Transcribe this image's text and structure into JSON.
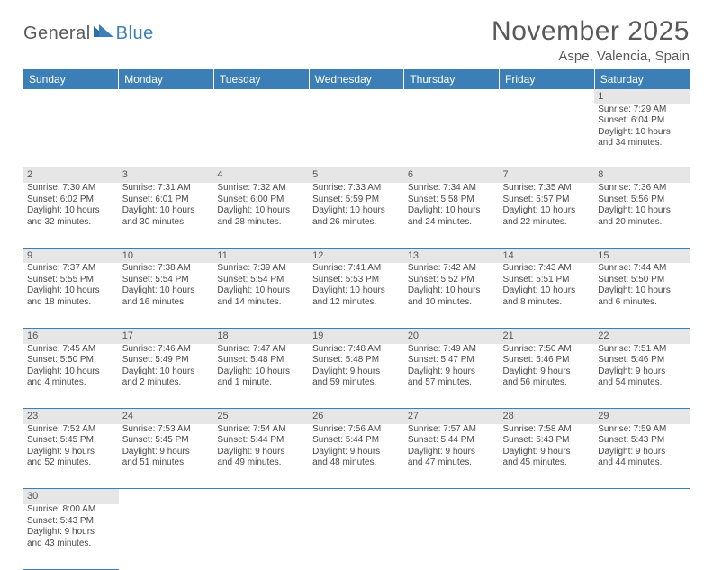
{
  "branding": {
    "logo_part1": "General",
    "logo_part2": "Blue",
    "logo_color_gray": "#5a5a5a",
    "logo_color_blue": "#3b7fb6"
  },
  "header": {
    "title": "November 2025",
    "location": "Aspe, Valencia, Spain"
  },
  "theme": {
    "header_bg": "#3b7fb6",
    "header_fg": "#ffffff",
    "daynum_bg": "#e6e6e6",
    "border_color": "#3b7fb6",
    "text_color": "#4a4a4a"
  },
  "weekdays": [
    "Sunday",
    "Monday",
    "Tuesday",
    "Wednesday",
    "Thursday",
    "Friday",
    "Saturday"
  ],
  "weeks": [
    [
      null,
      null,
      null,
      null,
      null,
      null,
      {
        "n": "1",
        "sr": "Sunrise: 7:29 AM",
        "ss": "Sunset: 6:04 PM",
        "d1": "Daylight: 10 hours",
        "d2": "and 34 minutes."
      }
    ],
    [
      {
        "n": "2",
        "sr": "Sunrise: 7:30 AM",
        "ss": "Sunset: 6:02 PM",
        "d1": "Daylight: 10 hours",
        "d2": "and 32 minutes."
      },
      {
        "n": "3",
        "sr": "Sunrise: 7:31 AM",
        "ss": "Sunset: 6:01 PM",
        "d1": "Daylight: 10 hours",
        "d2": "and 30 minutes."
      },
      {
        "n": "4",
        "sr": "Sunrise: 7:32 AM",
        "ss": "Sunset: 6:00 PM",
        "d1": "Daylight: 10 hours",
        "d2": "and 28 minutes."
      },
      {
        "n": "5",
        "sr": "Sunrise: 7:33 AM",
        "ss": "Sunset: 5:59 PM",
        "d1": "Daylight: 10 hours",
        "d2": "and 26 minutes."
      },
      {
        "n": "6",
        "sr": "Sunrise: 7:34 AM",
        "ss": "Sunset: 5:58 PM",
        "d1": "Daylight: 10 hours",
        "d2": "and 24 minutes."
      },
      {
        "n": "7",
        "sr": "Sunrise: 7:35 AM",
        "ss": "Sunset: 5:57 PM",
        "d1": "Daylight: 10 hours",
        "d2": "and 22 minutes."
      },
      {
        "n": "8",
        "sr": "Sunrise: 7:36 AM",
        "ss": "Sunset: 5:56 PM",
        "d1": "Daylight: 10 hours",
        "d2": "and 20 minutes."
      }
    ],
    [
      {
        "n": "9",
        "sr": "Sunrise: 7:37 AM",
        "ss": "Sunset: 5:55 PM",
        "d1": "Daylight: 10 hours",
        "d2": "and 18 minutes."
      },
      {
        "n": "10",
        "sr": "Sunrise: 7:38 AM",
        "ss": "Sunset: 5:54 PM",
        "d1": "Daylight: 10 hours",
        "d2": "and 16 minutes."
      },
      {
        "n": "11",
        "sr": "Sunrise: 7:39 AM",
        "ss": "Sunset: 5:54 PM",
        "d1": "Daylight: 10 hours",
        "d2": "and 14 minutes."
      },
      {
        "n": "12",
        "sr": "Sunrise: 7:41 AM",
        "ss": "Sunset: 5:53 PM",
        "d1": "Daylight: 10 hours",
        "d2": "and 12 minutes."
      },
      {
        "n": "13",
        "sr": "Sunrise: 7:42 AM",
        "ss": "Sunset: 5:52 PM",
        "d1": "Daylight: 10 hours",
        "d2": "and 10 minutes."
      },
      {
        "n": "14",
        "sr": "Sunrise: 7:43 AM",
        "ss": "Sunset: 5:51 PM",
        "d1": "Daylight: 10 hours",
        "d2": "and 8 minutes."
      },
      {
        "n": "15",
        "sr": "Sunrise: 7:44 AM",
        "ss": "Sunset: 5:50 PM",
        "d1": "Daylight: 10 hours",
        "d2": "and 6 minutes."
      }
    ],
    [
      {
        "n": "16",
        "sr": "Sunrise: 7:45 AM",
        "ss": "Sunset: 5:50 PM",
        "d1": "Daylight: 10 hours",
        "d2": "and 4 minutes."
      },
      {
        "n": "17",
        "sr": "Sunrise: 7:46 AM",
        "ss": "Sunset: 5:49 PM",
        "d1": "Daylight: 10 hours",
        "d2": "and 2 minutes."
      },
      {
        "n": "18",
        "sr": "Sunrise: 7:47 AM",
        "ss": "Sunset: 5:48 PM",
        "d1": "Daylight: 10 hours",
        "d2": "and 1 minute."
      },
      {
        "n": "19",
        "sr": "Sunrise: 7:48 AM",
        "ss": "Sunset: 5:48 PM",
        "d1": "Daylight: 9 hours",
        "d2": "and 59 minutes."
      },
      {
        "n": "20",
        "sr": "Sunrise: 7:49 AM",
        "ss": "Sunset: 5:47 PM",
        "d1": "Daylight: 9 hours",
        "d2": "and 57 minutes."
      },
      {
        "n": "21",
        "sr": "Sunrise: 7:50 AM",
        "ss": "Sunset: 5:46 PM",
        "d1": "Daylight: 9 hours",
        "d2": "and 56 minutes."
      },
      {
        "n": "22",
        "sr": "Sunrise: 7:51 AM",
        "ss": "Sunset: 5:46 PM",
        "d1": "Daylight: 9 hours",
        "d2": "and 54 minutes."
      }
    ],
    [
      {
        "n": "23",
        "sr": "Sunrise: 7:52 AM",
        "ss": "Sunset: 5:45 PM",
        "d1": "Daylight: 9 hours",
        "d2": "and 52 minutes."
      },
      {
        "n": "24",
        "sr": "Sunrise: 7:53 AM",
        "ss": "Sunset: 5:45 PM",
        "d1": "Daylight: 9 hours",
        "d2": "and 51 minutes."
      },
      {
        "n": "25",
        "sr": "Sunrise: 7:54 AM",
        "ss": "Sunset: 5:44 PM",
        "d1": "Daylight: 9 hours",
        "d2": "and 49 minutes."
      },
      {
        "n": "26",
        "sr": "Sunrise: 7:56 AM",
        "ss": "Sunset: 5:44 PM",
        "d1": "Daylight: 9 hours",
        "d2": "and 48 minutes."
      },
      {
        "n": "27",
        "sr": "Sunrise: 7:57 AM",
        "ss": "Sunset: 5:44 PM",
        "d1": "Daylight: 9 hours",
        "d2": "and 47 minutes."
      },
      {
        "n": "28",
        "sr": "Sunrise: 7:58 AM",
        "ss": "Sunset: 5:43 PM",
        "d1": "Daylight: 9 hours",
        "d2": "and 45 minutes."
      },
      {
        "n": "29",
        "sr": "Sunrise: 7:59 AM",
        "ss": "Sunset: 5:43 PM",
        "d1": "Daylight: 9 hours",
        "d2": "and 44 minutes."
      }
    ],
    [
      {
        "n": "30",
        "sr": "Sunrise: 8:00 AM",
        "ss": "Sunset: 5:43 PM",
        "d1": "Daylight: 9 hours",
        "d2": "and 43 minutes."
      },
      null,
      null,
      null,
      null,
      null,
      null
    ]
  ]
}
